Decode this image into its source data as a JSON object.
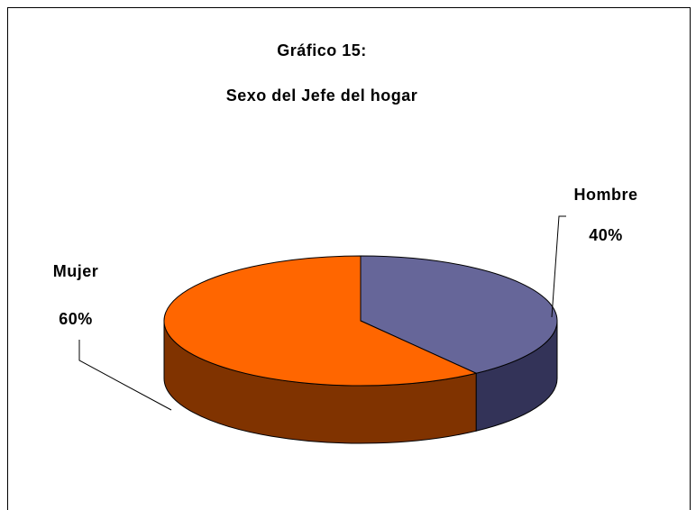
{
  "chart_data": {
    "type": "pie3d",
    "title": "Gráfico 15:",
    "subtitle": "Sexo del Jefe del hogar",
    "categories": [
      "Hombre",
      "Mujer"
    ],
    "values": [
      40,
      60
    ],
    "value_labels": [
      "40%",
      "60%"
    ],
    "colors": [
      "#666699",
      "#ff6600"
    ],
    "side_colors": [
      "#333358",
      "#803300"
    ]
  }
}
